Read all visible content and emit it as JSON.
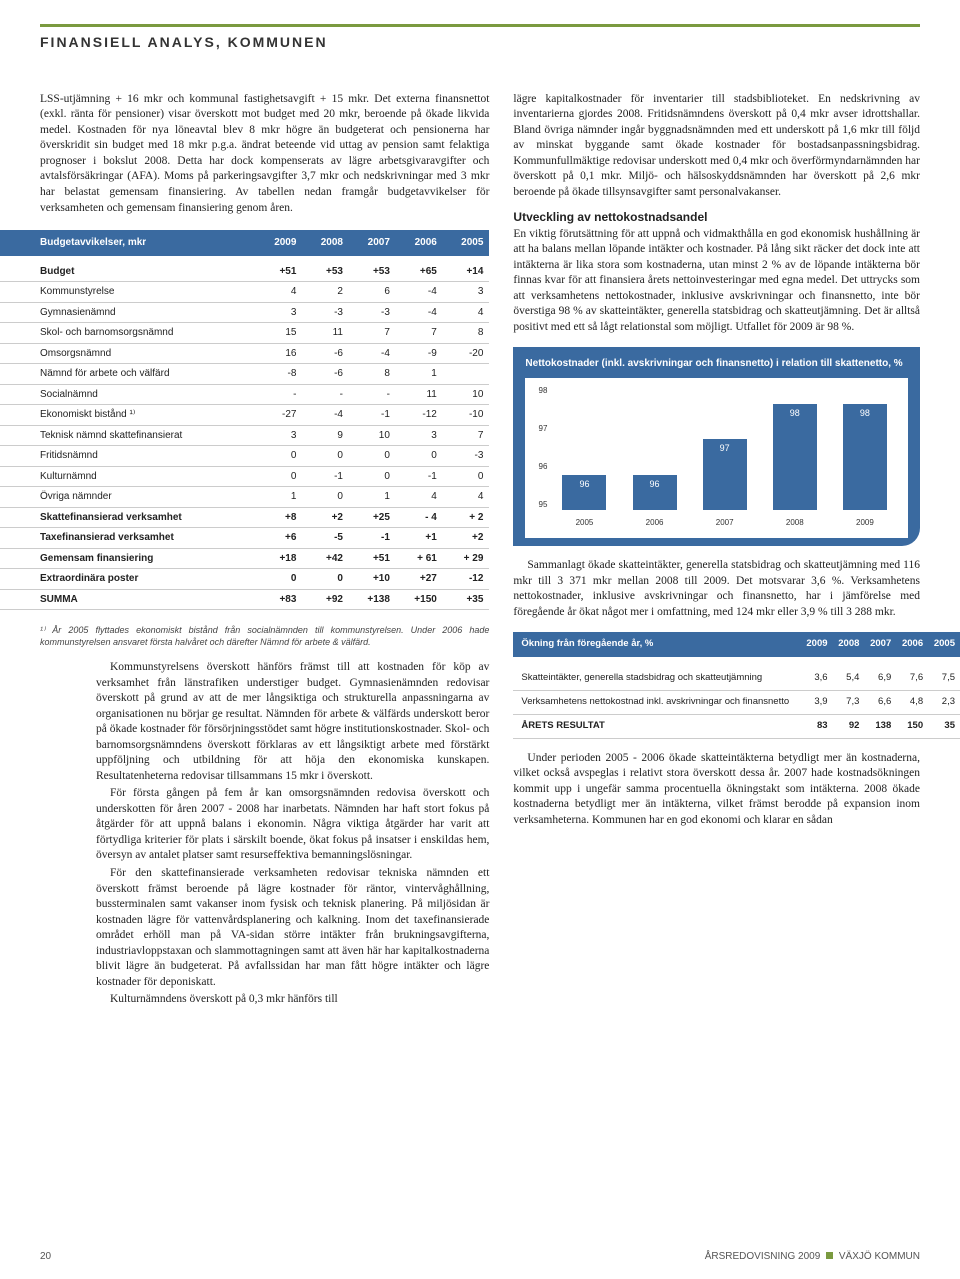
{
  "header": {
    "section_title": "FINANSIELL ANALYS, KOMMUNEN"
  },
  "left": {
    "p1": "LSS-utjämning + 16 mkr och kommunal fastighetsavgift + 15 mkr. Det externa finansnettot (exkl. ränta för pensioner) visar överskott mot budget med 20 mkr, beroende på ökade likvida medel. Kostnaden för nya löneavtal blev 8 mkr högre än budgeterat och pensionerna har överskridit sin budget med 18 mkr p.g.a. ändrat beteende vid uttag av pension samt felaktiga prognoser i bokslut 2008. Detta har dock kompenserats av lägre arbetsgivaravgifter och avtalsförsäkringar (AFA). Moms på parkeringsavgifter 3,7 mkr och nedskrivningar med 3 mkr har belastat gemensam finansiering. Av tabellen nedan framgår budgetavvikelser för verksamheten och gemensam finansiering genom åren.",
    "footnote": "¹⁾ År 2005 flyttades ekonomiskt bistånd från socialnämnden till kommunstyrelsen. Under 2006 hade kommunstyrelsen ansvaret första halvåret och därefter Nämnd för arbete & välfärd.",
    "p2": "Kommunstyrelsens överskott hänförs främst till att kostnaden för köp av verksamhet från länstrafiken understiger budget. Gymnasienämnden redovisar överskott på grund av att de mer långsiktiga och strukturella anpassningarna av organisationen nu börjar ge resultat. Nämnden för arbete & välfärds underskott beror på ökade kostnader för försörjningsstödet samt högre institutionskostnader. Skol- och barnomsorgsnämndens överskott förklaras av ett långsiktigt arbete med förstärkt uppföljning och utbildning för att höja den ekonomiska kunskapen. Resultatenheterna redovisar tillsammans 15 mkr i överskott.",
    "p3": "För första gången på fem år kan omsorgsnämnden redovisa överskott och underskotten för åren 2007 - 2008 har inarbetats. Nämnden har haft stort fokus på åtgärder för att uppnå balans i ekonomin. Några viktiga åtgärder har varit att förtydliga kriterier för plats i särskilt boende, ökat fokus på insatser i enskildas hem, översyn av antalet platser samt resurseffektiva bemanningslösningar.",
    "p4": "För den skattefinansierade verksamheten redovisar tekniska nämnden ett överskott främst beroende på lägre kostnader för räntor, vintervåghållning, bussterminalen samt vakanser inom fysisk och teknisk planering. På miljösidan är kostnaden lägre för vattenvårdsplanering och kalkning. Inom det taxefinansierade området erhöll man på VA-sidan större intäkter från brukningsavgifterna, industriavloppstaxan och slammottagningen samt att även här har kapitalkostnaderna blivit lägre än budgeterat. På avfallssidan har man fått högre intäkter och lägre kostnader för deponiskatt.",
    "p5": "Kulturnämndens överskott på 0,3 mkr hänförs till"
  },
  "right": {
    "p1": "lägre kapitalkostnader för inventarier till stadsbiblioteket. En nedskrivning av inventarierna gjordes 2008. Fritidsnämndens överskott på 0,4 mkr avser idrottshallar. Bland övriga nämnder ingår byggnadsnämnden med ett underskott på 1,6 mkr till följd av minskat byggande samt ökade kostnader för bostadsanpassningsbidrag. Kommunfullmäktige redovisar underskott med 0,4 mkr och överförmyndarnämnden har överskott på 0,1 mkr. Miljö- och hälsoskyddsnämnden har överskott på 2,6 mkr beroende på ökade tillsynsavgifter samt personalvakanser.",
    "h1": "Utveckling av nettokostnadsandel",
    "p2": "En viktig förutsättning för att uppnå och vidmakthålla en god ekonomisk hushållning är att ha balans mellan löpande intäkter och kostnader. På lång sikt räcker det dock inte att intäkterna är lika stora som kostnaderna, utan minst 2 % av de löpande intäkterna bör finnas kvar för att finansiera årets nettoinvesteringar med egna medel. Det uttrycks som att verksamhetens nettokostnader, inklusive avskrivningar och finansnetto, inte bör överstiga 98 % av skatteintäkter, generella statsbidrag och skatteutjämning. Det är alltså positivt med ett så lågt relationstal som möjligt. Utfallet för 2009 är 98 %.",
    "p3": "Sammanlagt ökade skatteintäkter, generella statsbidrag och skatteutjämning med 116 mkr till 3 371 mkr mellan 2008 till 2009. Det motsvarar 3,6 %. Verksamhetens nettokostnader, inklusive avskrivningar och finansnetto, har i jämförelse med föregående år ökat något mer i omfattning, med 124 mkr eller 3,9 % till 3 288 mkr.",
    "p4": "Under perioden 2005 - 2006 ökade skatteintäkterna betydligt mer än kostnaderna, vilket också avspeglas i relativt stora överskott dessa år. 2007 hade kostnadsökningen kommit upp i ungefär samma procentuella ökningstakt som intäkterna. 2008 ökade kostnaderna betydligt mer än intäkterna, vilket främst berodde på expansion inom verksamheterna. Kommunen har en god ekonomi och klarar en sådan"
  },
  "table1": {
    "header": [
      "Budgetavvikelser, mkr",
      "2009",
      "2008",
      "2007",
      "2006",
      "2005"
    ],
    "rows": [
      {
        "bold": true,
        "c": [
          "Budget",
          "+51",
          "+53",
          "+53",
          "+65",
          "+14"
        ]
      },
      {
        "bold": false,
        "c": [
          "Kommunstyrelse",
          "4",
          "2",
          "6",
          "-4",
          "3"
        ]
      },
      {
        "bold": false,
        "c": [
          "Gymnasienämnd",
          "3",
          "-3",
          "-3",
          "-4",
          "4"
        ]
      },
      {
        "bold": false,
        "c": [
          "Skol- och barnomsorgsnämnd",
          "15",
          "11",
          "7",
          "7",
          "8"
        ]
      },
      {
        "bold": false,
        "c": [
          "Omsorgsnämnd",
          "16",
          "-6",
          "-4",
          "-9",
          "-20"
        ]
      },
      {
        "bold": false,
        "c": [
          "Nämnd för arbete och välfärd",
          "-8",
          "-6",
          "8",
          "1",
          ""
        ]
      },
      {
        "bold": false,
        "c": [
          "Socialnämnd",
          "-",
          "-",
          "-",
          "11",
          "10"
        ]
      },
      {
        "bold": false,
        "c": [
          "Ekonomiskt bistånd ¹⁾",
          "-27",
          "-4",
          "-1",
          "-12",
          "-10"
        ]
      },
      {
        "bold": false,
        "c": [
          "Teknisk nämnd skattefinansierat",
          "3",
          "9",
          "10",
          "3",
          "7"
        ]
      },
      {
        "bold": false,
        "c": [
          "Fritidsnämnd",
          "0",
          "0",
          "0",
          "0",
          "-3"
        ]
      },
      {
        "bold": false,
        "c": [
          "Kulturnämnd",
          "0",
          "-1",
          "0",
          "-1",
          "0"
        ]
      },
      {
        "bold": false,
        "c": [
          "Övriga nämnder",
          "1",
          "0",
          "1",
          "4",
          "4"
        ]
      },
      {
        "bold": true,
        "c": [
          "Skattefinansierad verksamhet",
          "+8",
          "+2",
          "+25",
          "- 4",
          "+ 2"
        ]
      },
      {
        "bold": true,
        "c": [
          "Taxefinansierad verksamhet",
          "+6",
          "-5",
          "-1",
          "+1",
          "+2"
        ]
      },
      {
        "bold": true,
        "c": [
          "Gemensam finansiering",
          "+18",
          "+42",
          "+51",
          "+ 61",
          "+ 29"
        ]
      },
      {
        "bold": true,
        "c": [
          "Extraordinära poster",
          "0",
          "0",
          "+10",
          "+27",
          "-12"
        ]
      },
      {
        "bold": true,
        "c": [
          "SUMMA",
          "+83",
          "+92",
          "+138",
          "+150",
          "+35"
        ]
      }
    ]
  },
  "chart": {
    "title": "Nettokostnader (inkl. avskrivningar och finansnetto) i relation till skattenetto, %",
    "ylim": [
      95,
      98.5
    ],
    "yticks": [
      "98",
      "97",
      "96",
      "95"
    ],
    "categories": [
      "2005",
      "2006",
      "2007",
      "2008",
      "2009"
    ],
    "values": [
      96,
      96,
      97,
      98,
      98
    ],
    "bar_color": "#3a6aa0",
    "bg_color": "#ffffff",
    "label_color": "#ffffff"
  },
  "table2": {
    "header": [
      "Ökning från föregående år, %",
      "2009",
      "2008",
      "2007",
      "2006",
      "2005"
    ],
    "rows": [
      {
        "bold": false,
        "c": [
          "Skatteintäkter, generella stadsbidrag och skatte­utjämning",
          "3,6",
          "5,4",
          "6,9",
          "7,6",
          "7,5"
        ]
      },
      {
        "bold": false,
        "c": [
          "Verksamhetens netto­kostnad inkl. avskrivningar och finansnetto",
          "3,9",
          "7,3",
          "6,6",
          "4,8",
          "2,3"
        ]
      },
      {
        "bold": true,
        "c": [
          "ÅRETS RESULTAT",
          "83",
          "92",
          "138",
          "150",
          "35"
        ]
      }
    ]
  },
  "footer": {
    "page": "20",
    "right": "ÅRSREDOVISNING 2009",
    "right2": "VÄXJÖ KOMMUN"
  }
}
